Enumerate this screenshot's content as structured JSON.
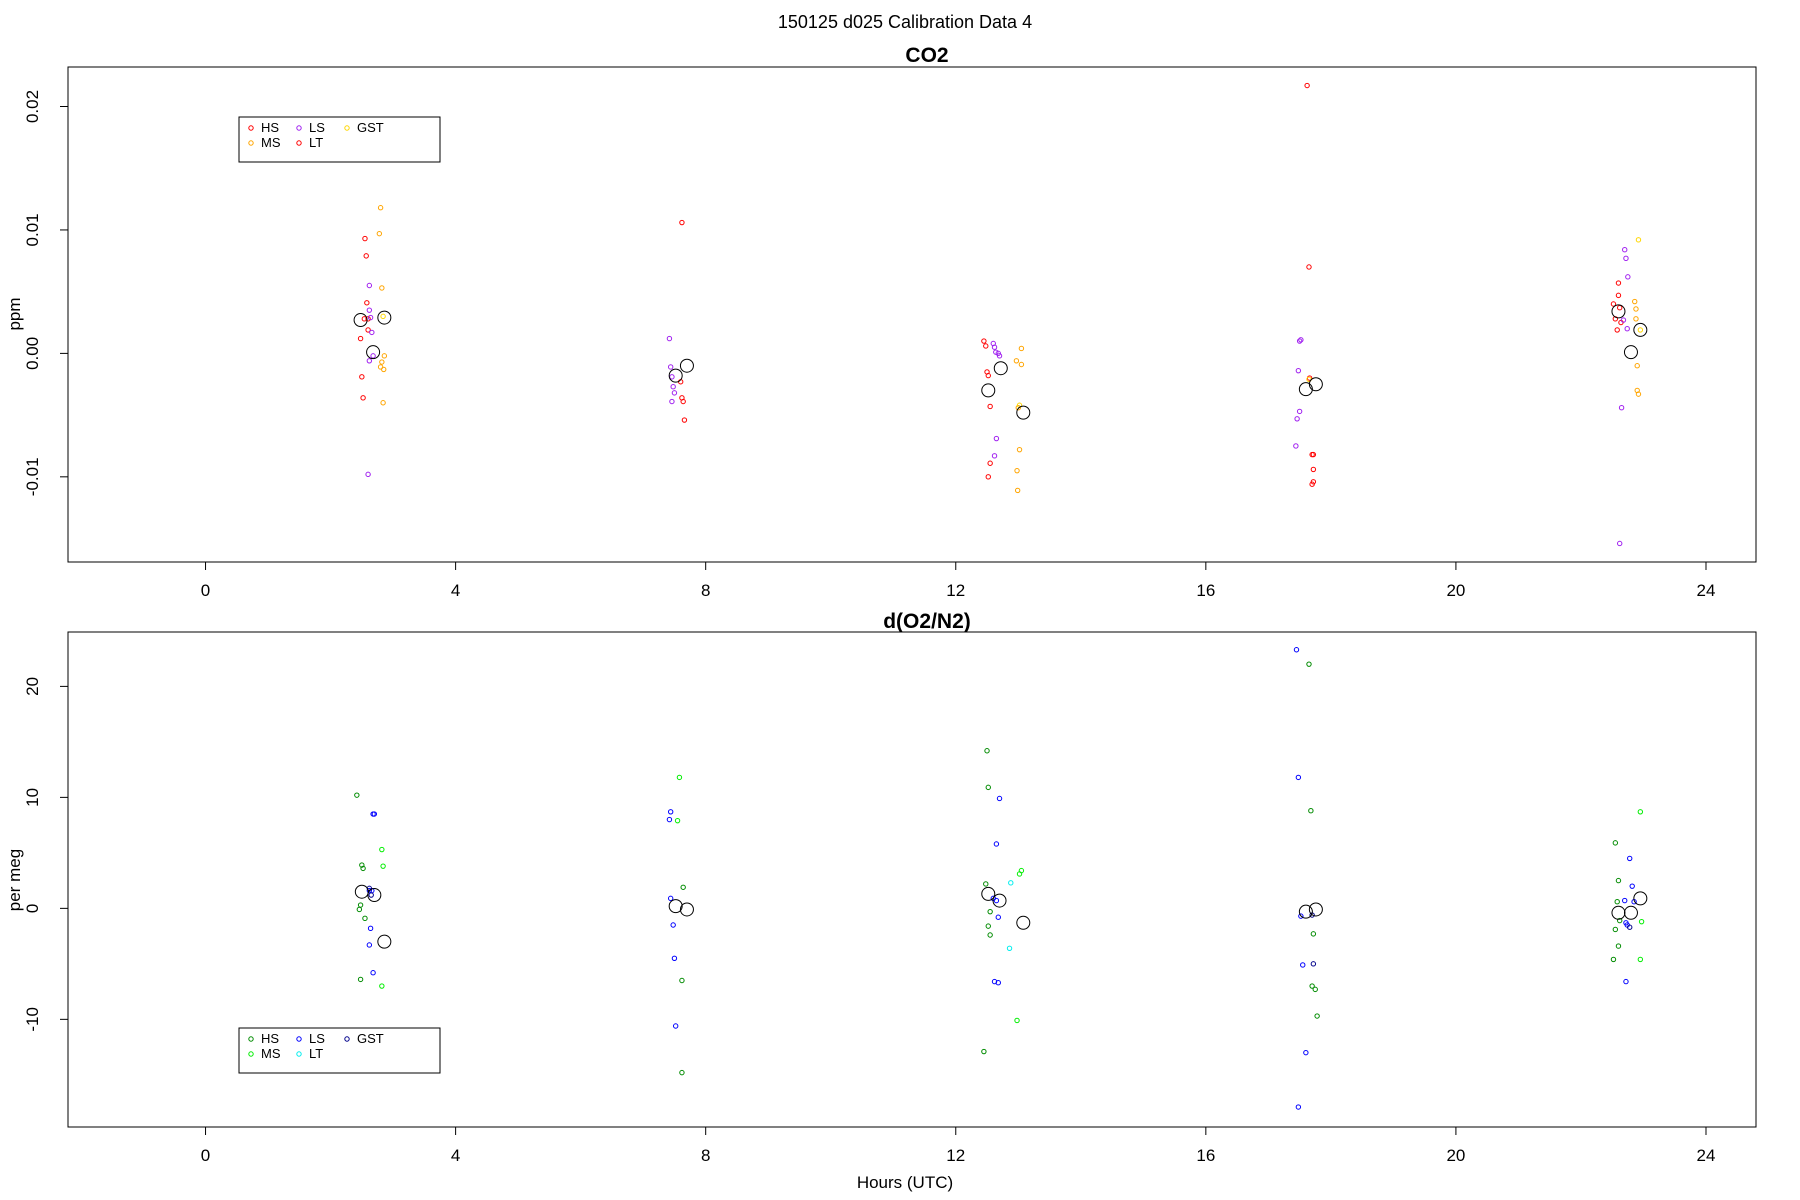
{
  "figure": {
    "title": "150125   d025   Calibration Data 4",
    "xlabel": "Hours (UTC)"
  },
  "chart_data": [
    {
      "type": "scatter",
      "title": "CO2",
      "xlabel": "",
      "ylabel": "ppm",
      "xlim": [
        -2.2,
        24.8
      ],
      "ylim": [
        -0.0169,
        0.0232
      ],
      "x_ticks": [
        0,
        4,
        8,
        12,
        16,
        20,
        24
      ],
      "y_ticks": [
        -0.01,
        0.0,
        0.01,
        0.02
      ],
      "y_tick_labels": [
        "-0.01",
        "0.00",
        "0.01",
        "0.02"
      ],
      "grid": false,
      "legend": {
        "placement": "top-left",
        "entries": [
          {
            "label": "HS",
            "color": "#ff0000"
          },
          {
            "label": "MS",
            "color": "#ffa500"
          },
          {
            "label": "LS",
            "color": "#a020f0"
          },
          {
            "label": "LT",
            "color": "#ff0000"
          },
          {
            "label": "GST",
            "color": "#ffd700"
          }
        ]
      },
      "series": [
        {
          "name": "HS",
          "color": "#ff0000",
          "points": [
            [
              2.48,
              0.0012
            ],
            [
              2.5,
              -0.0019
            ],
            [
              2.52,
              -0.0036
            ],
            [
              2.54,
              0.0028
            ],
            [
              2.55,
              0.0093
            ],
            [
              2.57,
              0.0079
            ],
            [
              2.58,
              0.0041
            ],
            [
              2.6,
              0.0028
            ],
            [
              2.6,
              0.0019
            ],
            [
              7.6,
              -0.0023
            ],
            [
              7.62,
              -0.0036
            ],
            [
              7.64,
              -0.0039
            ],
            [
              7.66,
              -0.0054
            ],
            [
              12.45,
              0.001
            ],
            [
              12.48,
              0.0006
            ],
            [
              12.5,
              -0.0015
            ],
            [
              12.52,
              -0.0018
            ],
            [
              12.55,
              -0.0043
            ],
            [
              12.52,
              -0.01
            ],
            [
              12.55,
              -0.0089
            ],
            [
              22.52,
              0.004
            ],
            [
              22.55,
              0.0028
            ],
            [
              22.58,
              0.0019
            ],
            [
              22.6,
              0.0057
            ],
            [
              22.6,
              0.0047
            ],
            [
              22.62,
              0.0037
            ],
            [
              22.64,
              0.0025
            ]
          ]
        },
        {
          "name": "MS",
          "color": "#ffa500",
          "points": [
            [
              2.8,
              0.0118
            ],
            [
              2.78,
              0.0097
            ],
            [
              2.82,
              0.0053
            ],
            [
              2.82,
              -0.0007
            ],
            [
              2.85,
              -0.0013
            ],
            [
              2.86,
              -0.0002
            ],
            [
              2.84,
              -0.004
            ],
            [
              2.8,
              -0.0011
            ],
            [
              12.97,
              -0.0006
            ],
            [
              13.0,
              -0.0044
            ],
            [
              13.02,
              -0.0078
            ],
            [
              12.98,
              -0.0095
            ],
            [
              12.99,
              -0.0111
            ],
            [
              13.05,
              0.0004
            ],
            [
              13.05,
              -0.0009
            ],
            [
              22.86,
              0.0042
            ],
            [
              22.88,
              0.0028
            ],
            [
              22.88,
              0.0036
            ],
            [
              22.9,
              -0.001
            ],
            [
              22.9,
              -0.003
            ],
            [
              22.92,
              -0.0033
            ]
          ]
        },
        {
          "name": "LS",
          "color": "#a020f0",
          "points": [
            [
              2.62,
              0.0055
            ],
            [
              2.62,
              0.0035
            ],
            [
              2.64,
              0.0029
            ],
            [
              2.66,
              0.0017
            ],
            [
              2.62,
              -0.0006
            ],
            [
              2.68,
              -0.0002
            ],
            [
              2.6,
              -0.0098
            ],
            [
              7.42,
              0.0012
            ],
            [
              7.44,
              -0.0011
            ],
            [
              7.46,
              -0.0019
            ],
            [
              7.48,
              -0.0027
            ],
            [
              7.5,
              -0.0032
            ],
            [
              7.46,
              -0.0039
            ],
            [
              12.6,
              0.0008
            ],
            [
              12.62,
              0.0005
            ],
            [
              12.64,
              0.0001
            ],
            [
              12.68,
              0.0
            ],
            [
              12.7,
              -0.0002
            ],
            [
              12.65,
              -0.0069
            ],
            [
              12.62,
              -0.0083
            ],
            [
              17.5,
              0.001
            ],
            [
              17.52,
              0.0011
            ],
            [
              17.48,
              -0.0014
            ],
            [
              17.5,
              -0.0047
            ],
            [
              17.46,
              -0.0053
            ],
            [
              17.44,
              -0.0075
            ],
            [
              22.7,
              0.0084
            ],
            [
              22.72,
              0.0077
            ],
            [
              22.75,
              0.0062
            ],
            [
              22.68,
              0.0027
            ],
            [
              22.74,
              0.002
            ],
            [
              22.65,
              -0.0044
            ],
            [
              22.62,
              -0.0154
            ]
          ]
        },
        {
          "name": "LT",
          "color": "#ff0000",
          "points": [
            [
              17.62,
              0.0217
            ],
            [
              17.65,
              0.007
            ],
            [
              17.66,
              -0.002
            ],
            [
              17.7,
              -0.0082
            ],
            [
              17.72,
              -0.0094
            ],
            [
              17.7,
              -0.0106
            ],
            [
              17.72,
              -0.0104
            ],
            [
              17.72,
              -0.0082
            ],
            [
              7.62,
              0.0106
            ]
          ]
        },
        {
          "name": "GST",
          "color": "#ffd700",
          "points": [
            [
              2.84,
              0.003
            ],
            [
              13.02,
              -0.0042
            ],
            [
              22.92,
              0.0092
            ],
            [
              22.95,
              0.0019
            ],
            [
              17.65,
              -0.0021
            ]
          ]
        }
      ],
      "means": [
        [
          2.48,
          0.0027
        ],
        [
          2.68,
          0.0001
        ],
        [
          2.86,
          0.0029
        ],
        [
          7.52,
          -0.0018
        ],
        [
          7.7,
          -0.001
        ],
        [
          12.52,
          -0.003
        ],
        [
          12.72,
          -0.0012
        ],
        [
          13.08,
          -0.0048
        ],
        [
          17.6,
          -0.0029
        ],
        [
          17.76,
          -0.0025
        ],
        [
          22.6,
          0.0034
        ],
        [
          22.8,
          0.0001
        ],
        [
          22.95,
          0.0019
        ]
      ]
    },
    {
      "type": "scatter",
      "title": "d(O2/N2)",
      "xlabel": "Hours (UTC)",
      "ylabel": "per meg",
      "xlim": [
        -2.2,
        24.8
      ],
      "ylim": [
        -19.7,
        24.9
      ],
      "x_ticks": [
        0,
        4,
        8,
        12,
        16,
        20,
        24
      ],
      "y_ticks": [
        -10,
        0,
        10,
        20
      ],
      "y_tick_labels": [
        "-10",
        "0",
        "10",
        "20"
      ],
      "grid": false,
      "legend": {
        "placement": "bottom-left",
        "entries": [
          {
            "label": "HS",
            "color": "#008b00"
          },
          {
            "label": "MS",
            "color": "#00ee00"
          },
          {
            "label": "LS",
            "color": "#0000ff"
          },
          {
            "label": "LT",
            "color": "#00eeee"
          },
          {
            "label": "GST",
            "color": "#00008b"
          }
        ]
      },
      "series": [
        {
          "name": "HS",
          "color": "#008b00",
          "points": [
            [
              2.42,
              10.2
            ],
            [
              2.5,
              3.9
            ],
            [
              2.52,
              3.6
            ],
            [
              2.48,
              0.3
            ],
            [
              2.46,
              -0.1
            ],
            [
              2.55,
              -0.9
            ],
            [
              2.48,
              -6.4
            ],
            [
              7.64,
              1.9
            ],
            [
              7.62,
              -6.5
            ],
            [
              7.62,
              -14.8
            ],
            [
              12.5,
              14.2
            ],
            [
              12.52,
              10.9
            ],
            [
              12.48,
              2.2
            ],
            [
              12.55,
              -0.3
            ],
            [
              12.52,
              -1.6
            ],
            [
              12.55,
              -2.4
            ],
            [
              12.45,
              -12.9
            ],
            [
              17.65,
              22.0
            ],
            [
              17.68,
              8.8
            ],
            [
              17.72,
              -2.3
            ],
            [
              17.7,
              -7.0
            ],
            [
              17.75,
              -7.3
            ],
            [
              17.78,
              -9.7
            ],
            [
              22.55,
              5.9
            ],
            [
              22.6,
              2.5
            ],
            [
              22.58,
              0.6
            ],
            [
              22.62,
              -1.1
            ],
            [
              22.55,
              -1.9
            ],
            [
              22.6,
              -3.4
            ],
            [
              22.52,
              -4.6
            ]
          ]
        },
        {
          "name": "MS",
          "color": "#00ee00",
          "points": [
            [
              2.82,
              5.3
            ],
            [
              2.84,
              3.8
            ],
            [
              2.82,
              -7.0
            ],
            [
              7.58,
              11.8
            ],
            [
              7.55,
              7.9
            ],
            [
              13.02,
              3.1
            ],
            [
              13.05,
              3.4
            ],
            [
              12.98,
              -10.1
            ],
            [
              22.95,
              8.7
            ],
            [
              22.97,
              -1.2
            ],
            [
              22.95,
              -4.6
            ]
          ]
        },
        {
          "name": "LS",
          "color": "#0000ff",
          "points": [
            [
              2.68,
              8.5
            ],
            [
              2.7,
              8.5
            ],
            [
              2.62,
              1.6
            ],
            [
              2.66,
              1.6
            ],
            [
              2.64,
              -1.8
            ],
            [
              2.62,
              -3.3
            ],
            [
              2.68,
              -5.8
            ],
            [
              7.44,
              8.7
            ],
            [
              7.42,
              8.0
            ],
            [
              7.44,
              0.9
            ],
            [
              7.48,
              -1.5
            ],
            [
              7.5,
              -4.5
            ],
            [
              7.52,
              -10.6
            ],
            [
              12.7,
              9.9
            ],
            [
              12.65,
              5.8
            ],
            [
              12.6,
              0.9
            ],
            [
              12.65,
              0.7
            ],
            [
              12.68,
              -0.8
            ],
            [
              12.62,
              -6.6
            ],
            [
              12.68,
              -6.7
            ],
            [
              17.45,
              23.3
            ],
            [
              17.48,
              11.8
            ],
            [
              17.52,
              -0.7
            ],
            [
              17.55,
              -5.1
            ],
            [
              17.6,
              -13.0
            ],
            [
              17.48,
              -17.9
            ],
            [
              22.78,
              4.5
            ],
            [
              22.82,
              2.0
            ],
            [
              22.85,
              0.6
            ],
            [
              22.7,
              0.7
            ],
            [
              22.72,
              -1.3
            ],
            [
              22.74,
              -1.5
            ],
            [
              22.72,
              -6.6
            ]
          ]
        },
        {
          "name": "LT",
          "color": "#00eeee",
          "points": [
            [
              12.88,
              2.3
            ],
            [
              12.86,
              -3.6
            ]
          ]
        },
        {
          "name": "GST",
          "color": "#00008b",
          "points": [
            [
              2.62,
              1.8
            ],
            [
              2.65,
              1.2
            ],
            [
              17.72,
              -5.0
            ],
            [
              17.7,
              -0.6
            ],
            [
              22.78,
              -1.7
            ]
          ]
        }
      ],
      "means": [
        [
          2.5,
          1.5
        ],
        [
          2.7,
          1.2
        ],
        [
          2.86,
          -3.0
        ],
        [
          7.52,
          0.2
        ],
        [
          7.7,
          -0.1
        ],
        [
          12.52,
          1.3
        ],
        [
          12.7,
          0.7
        ],
        [
          13.08,
          -1.3
        ],
        [
          17.6,
          -0.3
        ],
        [
          17.76,
          -0.1
        ],
        [
          22.6,
          -0.4
        ],
        [
          22.8,
          -0.4
        ],
        [
          22.95,
          0.9
        ]
      ]
    }
  ]
}
